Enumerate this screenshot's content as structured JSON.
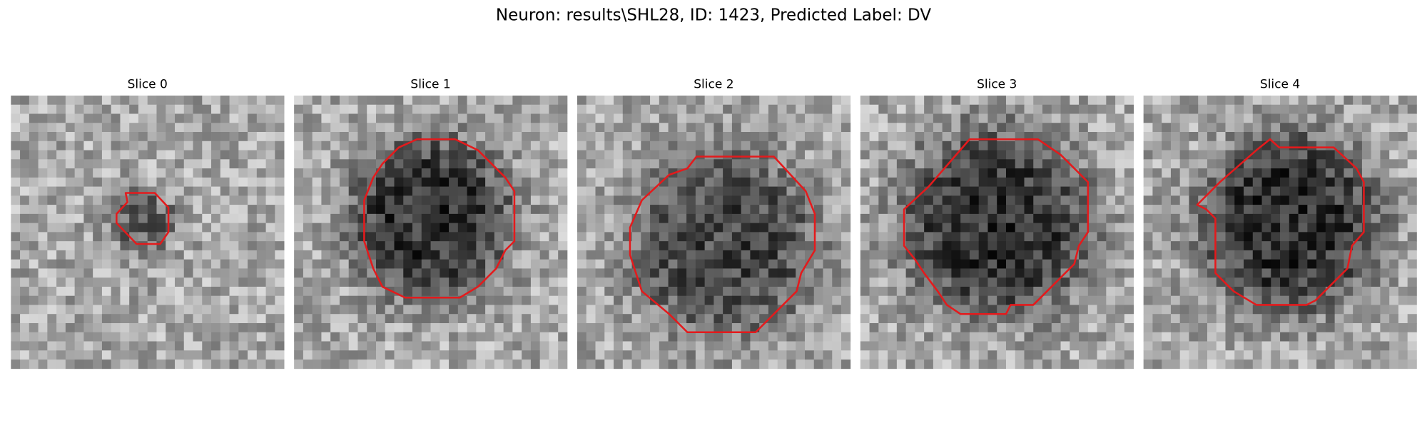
{
  "title": "Neuron: results\\SHL28, ID: 1423, Predicted Label: DV",
  "panels": [
    {
      "label": "Slice 0"
    },
    {
      "label": "Slice 1"
    },
    {
      "label": "Slice 2"
    },
    {
      "label": "Slice 3"
    },
    {
      "label": "Slice 4"
    }
  ]
}
